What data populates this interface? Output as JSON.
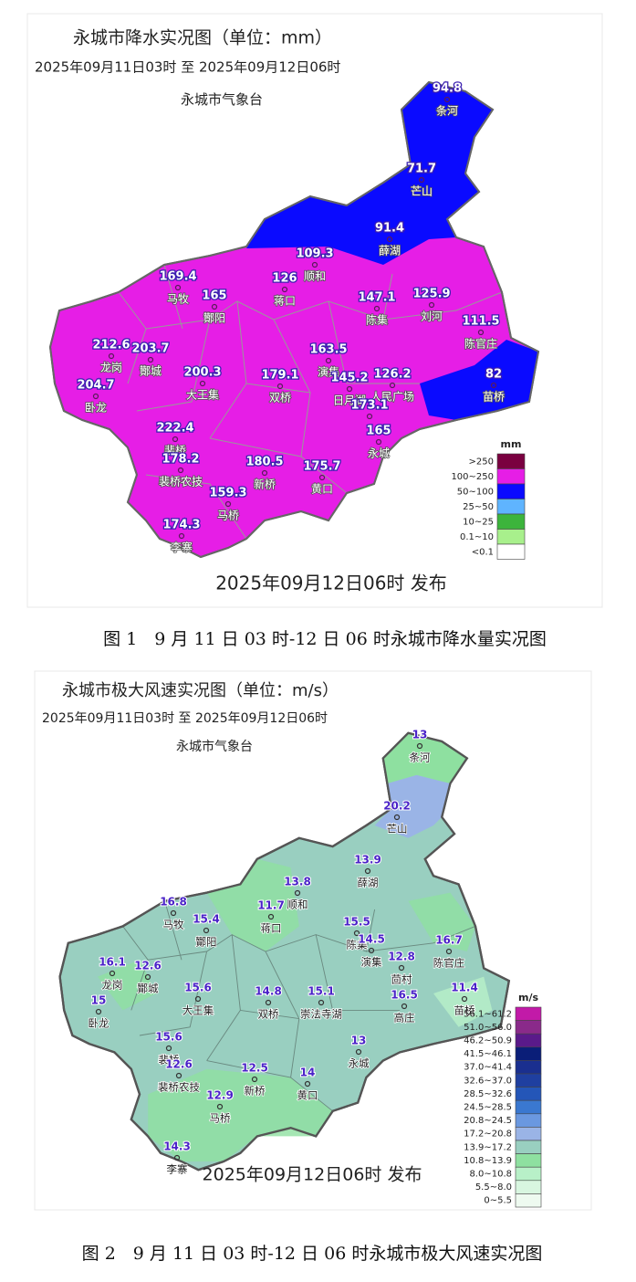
{
  "figure1": {
    "title": "永城市降水实况图（单位：mm）",
    "period": "2025年09月11日03时  至  2025年09月12日06时",
    "issuer": "永城市气象台",
    "published": "2025年09月12日06时 发布",
    "caption": "图 1　9 月 11 日 03 时-12 日 06 时永城市降水量实况图",
    "legend": {
      "unit": "mm",
      "items": [
        {
          "label": ">250",
          "color": "#7a0040"
        },
        {
          "label": "100~250",
          "color": "#e61ee6"
        },
        {
          "label": "50~100",
          "color": "#0a0aff"
        },
        {
          "label": "25~50",
          "color": "#5fb4ff"
        },
        {
          "label": "10~25",
          "color": "#3cb43c"
        },
        {
          "label": "0.1~10",
          "color": "#a8f08c"
        },
        {
          "label": "<0.1",
          "color": "#ffffff"
        }
      ]
    },
    "stations": [
      {
        "name": "条河",
        "value": 94.8
      },
      {
        "name": "芒山",
        "value": 71.7
      },
      {
        "name": "薛湖",
        "value": 91.4
      },
      {
        "name": "顺和",
        "value": 109.3
      },
      {
        "name": "蒋口",
        "value": 126
      },
      {
        "name": "刘河",
        "value": 125.9
      },
      {
        "name": "马牧",
        "value": 169.4
      },
      {
        "name": "酇阳",
        "value": 165
      },
      {
        "name": "陈集",
        "value": 147.1
      },
      {
        "name": "陈官庄",
        "value": 111.5
      },
      {
        "name": "龙岗",
        "value": 212.6
      },
      {
        "name": "酇城",
        "value": 203.7
      },
      {
        "name": "大王集",
        "value": 200.3
      },
      {
        "name": "双桥",
        "value": 179.1
      },
      {
        "name": "演集",
        "value": 163.5
      },
      {
        "name": "卧龙",
        "value": 204.7
      },
      {
        "name": "日月湖",
        "value": 145.2
      },
      {
        "name": "人民广场",
        "value": 126.2
      },
      {
        "name": null,
        "value": 173.1
      },
      {
        "name": "永城",
        "value": 165
      },
      {
        "name": "苗桥",
        "value": 82
      },
      {
        "name": "裴桥",
        "value": 222.4
      },
      {
        "name": "裴桥农技",
        "value": 178.2
      },
      {
        "name": "新桥",
        "value": 180.5
      },
      {
        "name": "黄口",
        "value": 175.7
      },
      {
        "name": "马桥",
        "value": 159.3
      },
      {
        "name": "李寨",
        "value": 174.3
      }
    ]
  },
  "figure2": {
    "title": "永城市极大风速实况图（单位：m/s）",
    "period": "2025年09月11日03时  至  2025年09月12日06时",
    "issuer": "永城市气象台",
    "published": "2025年09月12日06时 发布",
    "caption": "图 2　9 月 11 日 03 时-12 日 06 时永城市极大风速实况图",
    "legend": {
      "unit": "m/s",
      "items": [
        {
          "label": "56.1~61.2",
          "color": "#c21aa8"
        },
        {
          "label": "51.0~56.0",
          "color": "#8a2a8a"
        },
        {
          "label": "46.2~50.9",
          "color": "#5a1a8a"
        },
        {
          "label": "41.5~46.1",
          "color": "#0a1e78"
        },
        {
          "label": "37.0~41.4",
          "color": "#1a2f8f"
        },
        {
          "label": "32.6~37.0",
          "color": "#1f3fa0"
        },
        {
          "label": "28.5~32.6",
          "color": "#2456b8"
        },
        {
          "label": "24.5~28.5",
          "color": "#3a78d0"
        },
        {
          "label": "20.8~24.5",
          "color": "#6a98e0"
        },
        {
          "label": "17.2~20.8",
          "color": "#9ab4e6"
        },
        {
          "label": "13.9~17.2",
          "color": "#99cfc0"
        },
        {
          "label": "10.8~13.9",
          "color": "#8ee0a0"
        },
        {
          "label": "8.0~10.8",
          "color": "#b8f0c8"
        },
        {
          "label": "5.5~8.0",
          "color": "#d8f6e0"
        },
        {
          "label": "0~5.5",
          "color": "#eefaf0"
        }
      ]
    },
    "stations": [
      {
        "name": "条河",
        "value": 13
      },
      {
        "name": "芒山",
        "value": 20.2
      },
      {
        "name": "薛湖",
        "value": 13.9
      },
      {
        "name": "顺和",
        "value": 13.8
      },
      {
        "name": "蒋口",
        "value": 11.7
      },
      {
        "name": "马牧",
        "value": 16.8
      },
      {
        "name": "酇阳",
        "value": 15.4
      },
      {
        "name": "陈集",
        "value": 15.5
      },
      {
        "name": "演集",
        "value": 14.5
      },
      {
        "name": "陈官庄",
        "value": 16.7
      },
      {
        "name": "龙岗",
        "value": 16.1
      },
      {
        "name": "酇城",
        "value": 12.6
      },
      {
        "name": "茴村",
        "value": 12.8
      },
      {
        "name": "卧龙",
        "value": 15
      },
      {
        "name": "大王集",
        "value": 15.6
      },
      {
        "name": "双桥",
        "value": 14.8
      },
      {
        "name": "崇法寺湖",
        "value": 15.1
      },
      {
        "name": "高庄",
        "value": 16.5
      },
      {
        "name": "苗桥",
        "value": 11.4
      },
      {
        "name": "裴桥",
        "value": 15.6
      },
      {
        "name": "永城",
        "value": 13
      },
      {
        "name": "裴桥农技",
        "value": 12.6
      },
      {
        "name": "新桥",
        "value": 12.5
      },
      {
        "name": "黄口",
        "value": 14
      },
      {
        "name": "马桥",
        "value": 12.9
      },
      {
        "name": "李寨",
        "value": 14.3
      }
    ]
  }
}
